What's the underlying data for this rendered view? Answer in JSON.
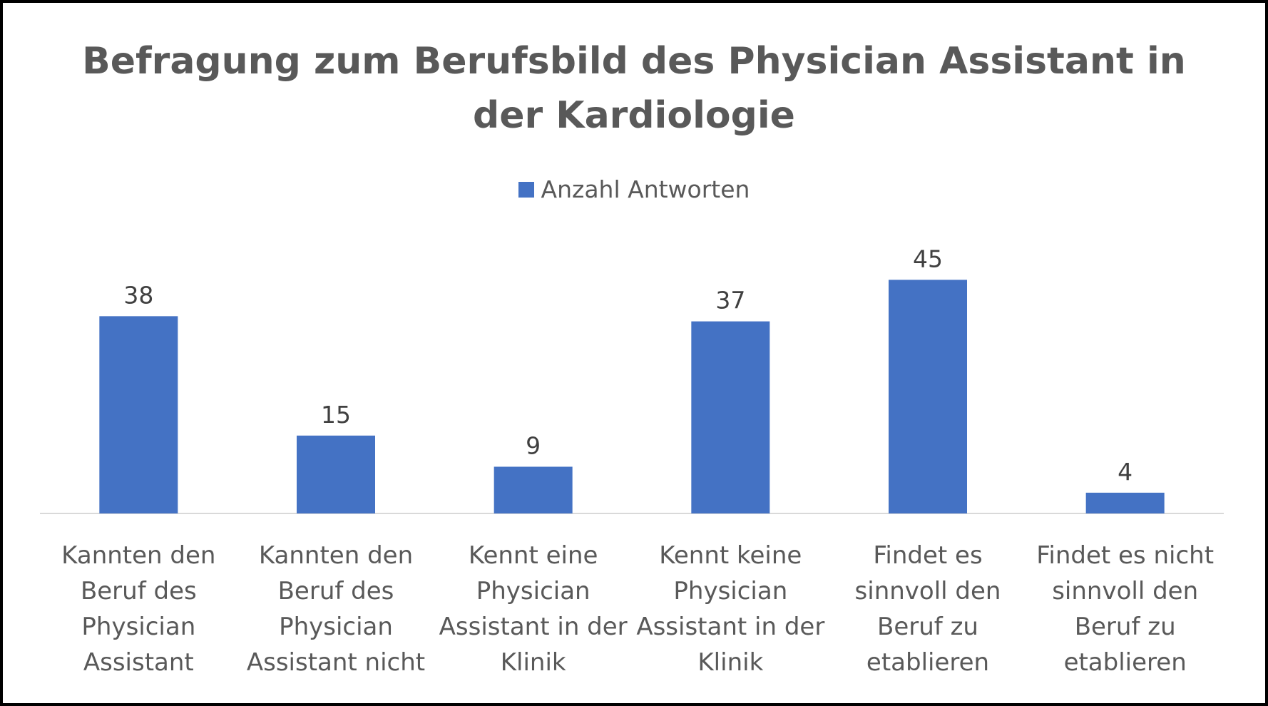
{
  "chart_data": {
    "type": "bar",
    "title_lines": [
      "Befragung zum Berufsbild des Physician Assistant in",
      "der Kardiologie"
    ],
    "categories": [
      [
        "Kannten den",
        "Beruf des",
        "Physician",
        "Assistant"
      ],
      [
        "Kannten den",
        "Beruf des",
        "Physician",
        "Assistant nicht"
      ],
      [
        "Kennt eine",
        "Physician",
        "Assistant in der",
        "Klinik"
      ],
      [
        "Kennt keine",
        "Physician",
        "Assistant in der",
        "Klinik"
      ],
      [
        "Findet es",
        "sinnvoll den",
        "Beruf zu",
        "etablieren"
      ],
      [
        "Findet es nicht",
        "sinnvoll den",
        "Beruf zu",
        "etablieren"
      ]
    ],
    "series": [
      {
        "name": "Anzahl Antworten",
        "values": [
          38,
          15,
          9,
          37,
          45,
          4
        ],
        "color": "#4472C4"
      }
    ],
    "ylim": [
      0,
      45
    ],
    "legend_position": "top",
    "grid": false,
    "data_labels": true
  }
}
